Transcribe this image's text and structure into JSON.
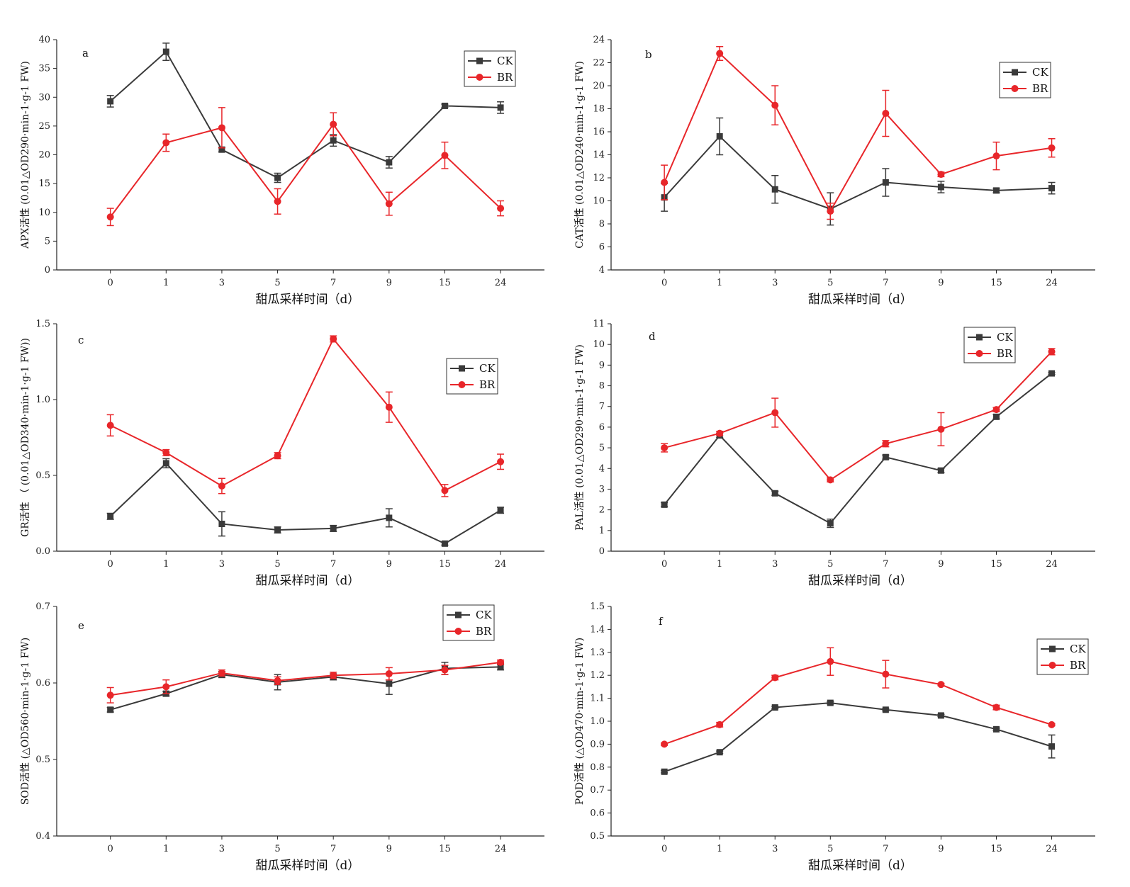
{
  "colors": {
    "CK": "#3a3a3a",
    "BR": "#e8262a",
    "axis": "#222222"
  },
  "chart_data": [
    {
      "type": "line",
      "panel": "a",
      "categories": [
        "0",
        "1",
        "3",
        "5",
        "7",
        "9",
        "15",
        "24"
      ],
      "xlabel": "甜瓜采样时间（d）",
      "ylabel": "APX活性 (0.01△OD290·min-1·g-1 FW)",
      "ylim": [
        0,
        40
      ],
      "yticks": [
        "0",
        "5",
        "10",
        "15",
        "20",
        "25",
        "30",
        "35",
        "40"
      ],
      "legend_position": "top-right",
      "series": [
        {
          "name": "CK",
          "marker": "square",
          "values": [
            29.3,
            37.9,
            20.9,
            16.0,
            22.5,
            18.7,
            28.5,
            28.2
          ],
          "errors": [
            1.0,
            1.5,
            0.4,
            0.8,
            1.0,
            1.0,
            0.3,
            1.0
          ]
        },
        {
          "name": "BR",
          "marker": "circle",
          "values": [
            9.2,
            22.1,
            24.7,
            11.9,
            25.3,
            11.5,
            19.9,
            10.7
          ],
          "errors": [
            1.5,
            1.5,
            3.5,
            2.2,
            2.0,
            2.0,
            2.3,
            1.3
          ]
        }
      ]
    },
    {
      "type": "line",
      "panel": "b",
      "categories": [
        "0",
        "1",
        "3",
        "5",
        "7",
        "9",
        "15",
        "24"
      ],
      "xlabel": "甜瓜采样时间（d）",
      "ylabel": "CAT活性 (0.01△OD240·min-1·g-1 FW)",
      "ylim": [
        4,
        24
      ],
      "yticks": [
        "4",
        "6",
        "8",
        "10",
        "12",
        "14",
        "16",
        "18",
        "20",
        "22",
        "24"
      ],
      "legend_position": "top-right",
      "series": [
        {
          "name": "CK",
          "marker": "square",
          "values": [
            10.3,
            15.6,
            11.0,
            9.3,
            11.6,
            11.2,
            10.9,
            11.1
          ],
          "errors": [
            1.2,
            1.6,
            1.2,
            1.4,
            1.2,
            0.5,
            0.2,
            0.5
          ]
        },
        {
          "name": "BR",
          "marker": "circle",
          "values": [
            11.6,
            22.8,
            18.3,
            9.1,
            17.6,
            12.3,
            13.9,
            14.6
          ],
          "errors": [
            1.5,
            0.6,
            1.7,
            0.7,
            2.0,
            0.2,
            1.2,
            0.8
          ]
        }
      ]
    },
    {
      "type": "line",
      "panel": "c",
      "categories": [
        "0",
        "1",
        "3",
        "5",
        "7",
        "9",
        "15",
        "24"
      ],
      "xlabel": "甜瓜采样时间（d）",
      "ylabel": "GR活性 （ (0.01△OD340·min-1·g-1 FW))",
      "ylim": [
        0,
        1.5
      ],
      "yticks": [
        "0.0",
        "0.5",
        "1.0",
        "1.5"
      ],
      "legend_position": "top-right",
      "series": [
        {
          "name": "CK",
          "marker": "square",
          "values": [
            0.23,
            0.58,
            0.18,
            0.14,
            0.15,
            0.22,
            0.05,
            0.27
          ],
          "errors": [
            0.02,
            0.03,
            0.08,
            0.02,
            0.02,
            0.06,
            0.01,
            0.02
          ]
        },
        {
          "name": "BR",
          "marker": "circle",
          "values": [
            0.83,
            0.65,
            0.43,
            0.63,
            1.4,
            0.95,
            0.4,
            0.59
          ],
          "errors": [
            0.07,
            0.02,
            0.05,
            0.02,
            0.02,
            0.1,
            0.04,
            0.05
          ]
        }
      ]
    },
    {
      "type": "line",
      "panel": "d",
      "categories": [
        "0",
        "1",
        "3",
        "5",
        "7",
        "9",
        "15",
        "24"
      ],
      "xlabel": "甜瓜采样时间（d）",
      "ylabel": "PAL活性 (0.01△OD290·min-1·g-1 FW)",
      "ylim": [
        0,
        11
      ],
      "yticks": [
        "0",
        "1",
        "2",
        "3",
        "4",
        "5",
        "6",
        "7",
        "8",
        "9",
        "10",
        "11"
      ],
      "legend_position": "top-right",
      "series": [
        {
          "name": "CK",
          "marker": "square",
          "values": [
            2.25,
            5.6,
            2.8,
            1.35,
            4.55,
            3.9,
            6.5,
            8.6
          ],
          "errors": [
            0.1,
            0.1,
            0.1,
            0.2,
            0.1,
            0.1,
            0.1,
            0.05
          ]
        },
        {
          "name": "BR",
          "marker": "circle",
          "values": [
            5.0,
            5.7,
            6.7,
            3.45,
            5.2,
            5.9,
            6.85,
            9.65
          ],
          "errors": [
            0.2,
            0.1,
            0.7,
            0.1,
            0.15,
            0.8,
            0.1,
            0.15
          ]
        }
      ]
    },
    {
      "type": "line",
      "panel": "e",
      "categories": [
        "0",
        "1",
        "3",
        "5",
        "7",
        "9",
        "15",
        "24"
      ],
      "xlabel": "甜瓜采样时间（d）",
      "ylabel": "SOD活性 (△OD560·min-1·g-1 FW)",
      "ylim": [
        0.4,
        0.7
      ],
      "yticks": [
        "0.4",
        "0.5",
        "0.6",
        "0.7"
      ],
      "legend_position": "top-right",
      "series": [
        {
          "name": "CK",
          "marker": "square",
          "values": [
            0.565,
            0.586,
            0.611,
            0.601,
            0.608,
            0.599,
            0.619,
            0.621
          ],
          "errors": [
            0.003,
            0.003,
            0.004,
            0.01,
            0.004,
            0.014,
            0.008,
            0.004
          ]
        },
        {
          "name": "BR",
          "marker": "circle",
          "values": [
            0.584,
            0.595,
            0.613,
            0.603,
            0.61,
            0.612,
            0.617,
            0.627
          ],
          "errors": [
            0.01,
            0.009,
            0.004,
            0.005,
            0.004,
            0.008,
            0.006,
            0.003
          ]
        }
      ]
    },
    {
      "type": "line",
      "panel": "f",
      "categories": [
        "0",
        "1",
        "3",
        "5",
        "7",
        "9",
        "15",
        "24"
      ],
      "xlabel": "甜瓜采样时间（d）",
      "ylabel": "POD活性 (△OD470·min-1·g-1 FW)",
      "ylim": [
        0.5,
        1.5
      ],
      "yticks": [
        "0.5",
        "0.6",
        "0.7",
        "0.8",
        "0.9",
        "1.0",
        "1.1",
        "1.2",
        "1.3",
        "1.4",
        "1.5"
      ],
      "legend_position": "top-right",
      "series": [
        {
          "name": "CK",
          "marker": "square",
          "values": [
            0.78,
            0.865,
            1.06,
            1.08,
            1.05,
            1.025,
            0.965,
            0.89
          ],
          "errors": [
            0.005,
            0.005,
            0.005,
            0.005,
            0.005,
            0.005,
            0.005,
            0.05
          ]
        },
        {
          "name": "BR",
          "marker": "circle",
          "values": [
            0.9,
            0.985,
            1.19,
            1.26,
            1.205,
            1.16,
            1.06,
            0.985
          ],
          "errors": [
            0.005,
            0.01,
            0.01,
            0.06,
            0.06,
            0.005,
            0.01,
            0.005
          ]
        }
      ]
    }
  ]
}
